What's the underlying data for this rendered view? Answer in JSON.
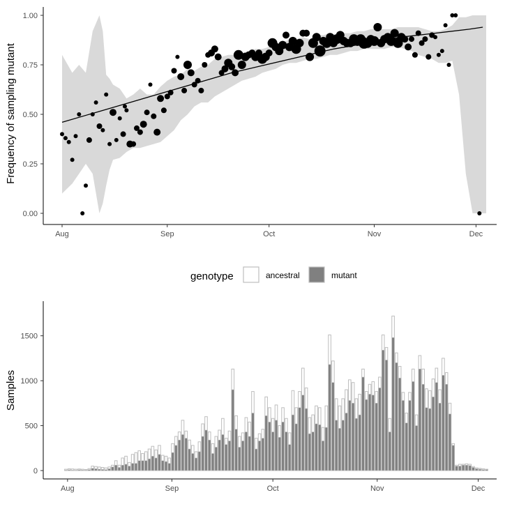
{
  "chart_data": [
    {
      "type": "scatter",
      "title": "",
      "xlabel": "",
      "ylabel": "Frequency of sampling mutant",
      "x_ticks": [
        "Aug",
        "Sep",
        "Oct",
        "Nov",
        "Dec"
      ],
      "y_ticks": [
        "0.00",
        "0.25",
        "0.50",
        "0.75",
        "1.00"
      ],
      "ylim": [
        0,
        1
      ],
      "xlim_days": [
        0,
        125
      ],
      "grid": false,
      "ribbon_color": "#d9d9d9",
      "point_color": "#000000",
      "ribbon": {
        "day": [
          0,
          3,
          5,
          7,
          9,
          11,
          12,
          13,
          14,
          15,
          17,
          19,
          21,
          23,
          25,
          27,
          29,
          31,
          33,
          35,
          37,
          39,
          41,
          43,
          45,
          47,
          49,
          51,
          53,
          55,
          57,
          59,
          61,
          63,
          65,
          67,
          69,
          71,
          73,
          75,
          77,
          79,
          81,
          83,
          85,
          87,
          89,
          91,
          93,
          95,
          97,
          99,
          101,
          103,
          105,
          107,
          109,
          111,
          113,
          115,
          117,
          119,
          121,
          122,
          123,
          125
        ],
        "upper": [
          0.8,
          0.71,
          0.75,
          0.71,
          0.92,
          1.0,
          0.92,
          0.7,
          0.68,
          0.65,
          0.63,
          0.58,
          0.6,
          0.63,
          0.6,
          0.6,
          0.64,
          0.67,
          0.69,
          0.7,
          0.73,
          0.72,
          0.74,
          0.75,
          0.78,
          0.79,
          0.8,
          0.8,
          0.81,
          0.82,
          0.83,
          0.83,
          0.84,
          0.85,
          0.86,
          0.88,
          0.88,
          0.89,
          0.88,
          0.9,
          0.9,
          0.91,
          0.9,
          0.91,
          0.91,
          0.92,
          0.92,
          0.93,
          0.93,
          0.93,
          0.93,
          0.94,
          0.94,
          0.94,
          0.94,
          0.93,
          0.92,
          0.92,
          0.93,
          0.95,
          0.99,
          0.99,
          1.0,
          1.0,
          1.0,
          1.0
        ],
        "lower": [
          0.1,
          0.15,
          0.2,
          0.25,
          0.2,
          0.0,
          0.05,
          0.14,
          0.22,
          0.27,
          0.28,
          0.31,
          0.33,
          0.33,
          0.34,
          0.35,
          0.36,
          0.39,
          0.42,
          0.47,
          0.5,
          0.54,
          0.56,
          0.56,
          0.59,
          0.61,
          0.63,
          0.65,
          0.67,
          0.68,
          0.69,
          0.71,
          0.72,
          0.73,
          0.75,
          0.76,
          0.76,
          0.77,
          0.78,
          0.78,
          0.79,
          0.8,
          0.8,
          0.81,
          0.82,
          0.82,
          0.83,
          0.83,
          0.83,
          0.83,
          0.84,
          0.84,
          0.83,
          0.82,
          0.8,
          0.79,
          0.78,
          0.76,
          0.76,
          0.77,
          0.6,
          0.2,
          0.0,
          0.0,
          0.0,
          0.0
        ]
      },
      "trend": {
        "day": [
          0,
          10,
          20,
          30,
          40,
          50,
          60,
          70,
          80,
          90,
          100,
          110,
          120,
          124
        ],
        "y": [
          0.46,
          0.51,
          0.56,
          0.61,
          0.66,
          0.71,
          0.75,
          0.79,
          0.83,
          0.86,
          0.89,
          0.91,
          0.93,
          0.94
        ]
      },
      "points": [
        {
          "day": 0,
          "y": 0.4,
          "size": 3
        },
        {
          "day": 1,
          "y": 0.38,
          "size": 3
        },
        {
          "day": 2,
          "y": 0.36,
          "size": 3
        },
        {
          "day": 3,
          "y": 0.27,
          "size": 3
        },
        {
          "day": 4,
          "y": 0.39,
          "size": 3
        },
        {
          "day": 5,
          "y": 0.5,
          "size": 3
        },
        {
          "day": 6,
          "y": 0.0,
          "size": 3
        },
        {
          "day": 7,
          "y": 0.14,
          "size": 3
        },
        {
          "day": 8,
          "y": 0.37,
          "size": 4
        },
        {
          "day": 9,
          "y": 0.5,
          "size": 3
        },
        {
          "day": 10,
          "y": 0.56,
          "size": 3
        },
        {
          "day": 11,
          "y": 0.44,
          "size": 4
        },
        {
          "day": 12,
          "y": 0.42,
          "size": 3
        },
        {
          "day": 13,
          "y": 0.6,
          "size": 3
        },
        {
          "day": 14,
          "y": 0.35,
          "size": 3
        },
        {
          "day": 15,
          "y": 0.51,
          "size": 5
        },
        {
          "day": 16,
          "y": 0.37,
          "size": 3
        },
        {
          "day": 17,
          "y": 0.48,
          "size": 3
        },
        {
          "day": 18,
          "y": 0.4,
          "size": 4
        },
        {
          "day": 18.5,
          "y": 0.54,
          "size": 3
        },
        {
          "day": 19,
          "y": 0.52,
          "size": 3
        },
        {
          "day": 20,
          "y": 0.35,
          "size": 5
        },
        {
          "day": 21,
          "y": 0.35,
          "size": 4
        },
        {
          "day": 22,
          "y": 0.43,
          "size": 4
        },
        {
          "day": 23,
          "y": 0.41,
          "size": 4
        },
        {
          "day": 24,
          "y": 0.45,
          "size": 5
        },
        {
          "day": 25,
          "y": 0.51,
          "size": 4
        },
        {
          "day": 26,
          "y": 0.65,
          "size": 3
        },
        {
          "day": 27,
          "y": 0.49,
          "size": 4
        },
        {
          "day": 28,
          "y": 0.41,
          "size": 5
        },
        {
          "day": 29,
          "y": 0.58,
          "size": 5
        },
        {
          "day": 30,
          "y": 0.52,
          "size": 4
        },
        {
          "day": 31,
          "y": 0.59,
          "size": 4
        },
        {
          "day": 32,
          "y": 0.61,
          "size": 4
        },
        {
          "day": 33,
          "y": 0.72,
          "size": 4
        },
        {
          "day": 34,
          "y": 0.79,
          "size": 3
        },
        {
          "day": 35,
          "y": 0.69,
          "size": 5
        },
        {
          "day": 36,
          "y": 0.62,
          "size": 4
        },
        {
          "day": 37,
          "y": 0.75,
          "size": 6
        },
        {
          "day": 38,
          "y": 0.71,
          "size": 5
        },
        {
          "day": 39,
          "y": 0.65,
          "size": 4
        },
        {
          "day": 40,
          "y": 0.67,
          "size": 4
        },
        {
          "day": 41,
          "y": 0.62,
          "size": 4
        },
        {
          "day": 42,
          "y": 0.75,
          "size": 4
        },
        {
          "day": 43,
          "y": 0.8,
          "size": 4
        },
        {
          "day": 44,
          "y": 0.81,
          "size": 5
        },
        {
          "day": 45,
          "y": 0.83,
          "size": 5
        },
        {
          "day": 46,
          "y": 0.79,
          "size": 5
        },
        {
          "day": 47,
          "y": 0.71,
          "size": 4
        },
        {
          "day": 48,
          "y": 0.73,
          "size": 5
        },
        {
          "day": 49,
          "y": 0.76,
          "size": 6
        },
        {
          "day": 50,
          "y": 0.74,
          "size": 5
        },
        {
          "day": 51,
          "y": 0.71,
          "size": 5
        },
        {
          "day": 52,
          "y": 0.8,
          "size": 7
        },
        {
          "day": 53,
          "y": 0.75,
          "size": 6
        },
        {
          "day": 54,
          "y": 0.79,
          "size": 6
        },
        {
          "day": 55,
          "y": 0.8,
          "size": 5
        },
        {
          "day": 56,
          "y": 0.81,
          "size": 5
        },
        {
          "day": 57,
          "y": 0.79,
          "size": 6
        },
        {
          "day": 58,
          "y": 0.81,
          "size": 5
        },
        {
          "day": 59,
          "y": 0.78,
          "size": 7
        },
        {
          "day": 60,
          "y": 0.79,
          "size": 6
        },
        {
          "day": 61,
          "y": 0.81,
          "size": 5
        },
        {
          "day": 62,
          "y": 0.86,
          "size": 7
        },
        {
          "day": 63,
          "y": 0.84,
          "size": 6
        },
        {
          "day": 64,
          "y": 0.82,
          "size": 6
        },
        {
          "day": 65,
          "y": 0.85,
          "size": 6
        },
        {
          "day": 66,
          "y": 0.9,
          "size": 5
        },
        {
          "day": 67,
          "y": 0.84,
          "size": 6
        },
        {
          "day": 68,
          "y": 0.87,
          "size": 6
        },
        {
          "day": 69,
          "y": 0.83,
          "size": 7
        },
        {
          "day": 70,
          "y": 0.86,
          "size": 6
        },
        {
          "day": 71,
          "y": 0.91,
          "size": 5
        },
        {
          "day": 72,
          "y": 0.91,
          "size": 5
        },
        {
          "day": 73,
          "y": 0.79,
          "size": 6
        },
        {
          "day": 74,
          "y": 0.86,
          "size": 7
        },
        {
          "day": 75,
          "y": 0.89,
          "size": 6
        },
        {
          "day": 76,
          "y": 0.82,
          "size": 8
        },
        {
          "day": 77,
          "y": 0.87,
          "size": 6
        },
        {
          "day": 78,
          "y": 0.86,
          "size": 7
        },
        {
          "day": 79,
          "y": 0.89,
          "size": 6
        },
        {
          "day": 80,
          "y": 0.86,
          "size": 6
        },
        {
          "day": 81,
          "y": 0.88,
          "size": 7
        },
        {
          "day": 82,
          "y": 0.9,
          "size": 6
        },
        {
          "day": 83,
          "y": 0.87,
          "size": 6
        },
        {
          "day": 84,
          "y": 0.86,
          "size": 6
        },
        {
          "day": 85,
          "y": 0.86,
          "size": 6
        },
        {
          "day": 86,
          "y": 0.88,
          "size": 7
        },
        {
          "day": 87,
          "y": 0.87,
          "size": 7
        },
        {
          "day": 88,
          "y": 0.88,
          "size": 7
        },
        {
          "day": 89,
          "y": 0.86,
          "size": 8
        },
        {
          "day": 90,
          "y": 0.86,
          "size": 7
        },
        {
          "day": 91,
          "y": 0.88,
          "size": 6
        },
        {
          "day": 92,
          "y": 0.87,
          "size": 7
        },
        {
          "day": 93,
          "y": 0.94,
          "size": 6
        },
        {
          "day": 94,
          "y": 0.86,
          "size": 6
        },
        {
          "day": 95,
          "y": 0.88,
          "size": 6
        },
        {
          "day": 96,
          "y": 0.89,
          "size": 6
        },
        {
          "day": 97,
          "y": 0.87,
          "size": 7
        },
        {
          "day": 98,
          "y": 0.91,
          "size": 6
        },
        {
          "day": 99,
          "y": 0.86,
          "size": 7
        },
        {
          "day": 100,
          "y": 0.89,
          "size": 6
        },
        {
          "day": 101,
          "y": 0.88,
          "size": 5
        },
        {
          "day": 102,
          "y": 0.84,
          "size": 5
        },
        {
          "day": 103,
          "y": 0.88,
          "size": 4
        },
        {
          "day": 104,
          "y": 0.8,
          "size": 4
        },
        {
          "day": 105,
          "y": 0.91,
          "size": 4
        },
        {
          "day": 106,
          "y": 0.86,
          "size": 4
        },
        {
          "day": 107,
          "y": 0.88,
          "size": 4
        },
        {
          "day": 108,
          "y": 0.79,
          "size": 4
        },
        {
          "day": 109,
          "y": 0.9,
          "size": 4
        },
        {
          "day": 110,
          "y": 0.89,
          "size": 3
        },
        {
          "day": 111,
          "y": 0.8,
          "size": 3
        },
        {
          "day": 112,
          "y": 0.82,
          "size": 3
        },
        {
          "day": 113,
          "y": 0.95,
          "size": 3
        },
        {
          "day": 114,
          "y": 0.75,
          "size": 3
        },
        {
          "day": 115,
          "y": 1.0,
          "size": 3
        },
        {
          "day": 116,
          "y": 1.0,
          "size": 3
        },
        {
          "day": 123,
          "y": 0.0,
          "size": 3
        }
      ]
    },
    {
      "type": "bar",
      "title": "",
      "xlabel": "",
      "ylabel": "Samples",
      "x_ticks": [
        "Aug",
        "Sep",
        "Oct",
        "Nov",
        "Dec"
      ],
      "y_ticks": [
        "0",
        "500",
        "1000",
        "1500"
      ],
      "ylim": [
        0,
        1800
      ],
      "xlim_days": [
        -1,
        125
      ],
      "grid": false,
      "legend": {
        "title": "genotype",
        "position": "top",
        "entries": [
          {
            "name": "ancestral",
            "fill": "#ffffff",
            "stroke": "#bdbdbd"
          },
          {
            "name": "mutant",
            "fill": "#808080",
            "stroke": "#bdbdbd"
          }
        ]
      },
      "series": [
        {
          "name": "ancestral",
          "values": [
            15,
            20,
            18,
            15,
            18,
            15,
            12,
            22,
            50,
            45,
            40,
            35,
            30,
            40,
            60,
            110,
            60,
            140,
            160,
            90,
            180,
            200,
            220,
            190,
            210,
            240,
            270,
            230,
            280,
            170,
            160,
            140,
            300,
            380,
            430,
            560,
            440,
            340,
            280,
            210,
            320,
            520,
            600,
            430,
            300,
            380,
            450,
            580,
            360,
            440,
            1130,
            610,
            380,
            420,
            590,
            540,
            880,
            360,
            410,
            460,
            820,
            700,
            580,
            730,
            500,
            700,
            580,
            420,
            890,
            700,
            880,
            1140,
            920,
            590,
            620,
            720,
            700,
            480,
            720,
            1510,
            1220,
            800,
            720,
            800,
            900,
            1010,
            980,
            800,
            850,
            1130,
            880,
            960,
            990,
            880,
            1040,
            1510,
            1370,
            580,
            1720,
            1310,
            1160,
            870,
            640,
            870,
            1130,
            620,
            1280,
            1130,
            910,
            890,
            1020,
            1140,
            900,
            1250,
            1090,
            750,
            300,
            60,
            70,
            70,
            75,
            70,
            45,
            30,
            25,
            20,
            15
          ]
        },
        {
          "name": "mutant",
          "values": [
            5,
            8,
            5,
            4,
            8,
            6,
            5,
            10,
            25,
            20,
            15,
            12,
            10,
            20,
            40,
            60,
            35,
            60,
            70,
            50,
            80,
            80,
            110,
            110,
            110,
            130,
            160,
            140,
            180,
            110,
            100,
            80,
            200,
            280,
            340,
            400,
            360,
            240,
            190,
            140,
            210,
            380,
            450,
            340,
            190,
            260,
            340,
            400,
            290,
            330,
            900,
            460,
            260,
            330,
            430,
            380,
            640,
            240,
            330,
            360,
            610,
            540,
            430,
            560,
            370,
            540,
            430,
            290,
            620,
            520,
            700,
            840,
            690,
            410,
            430,
            520,
            510,
            330,
            480,
            1180,
            980,
            560,
            470,
            560,
            640,
            780,
            750,
            580,
            620,
            1040,
            790,
            850,
            840,
            750,
            920,
            1340,
            1230,
            430,
            1480,
            1200,
            1030,
            780,
            530,
            780,
            990,
            500,
            1130,
            960,
            700,
            690,
            820,
            980,
            750,
            1060,
            960,
            630,
            280,
            50,
            50,
            60,
            60,
            55,
            35,
            20,
            15,
            10,
            10
          ]
        }
      ]
    }
  ]
}
